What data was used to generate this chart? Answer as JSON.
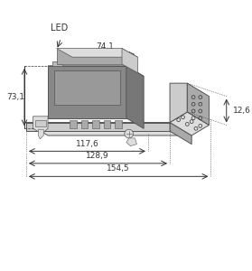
{
  "bg_color": "#ffffff",
  "line_color": "#555555",
  "dark_fill": "#888888",
  "medium_fill": "#aaaaaa",
  "light_fill": "#cccccc",
  "lighter_fill": "#dddddd",
  "dim_line_color": "#333333",
  "label_LED": "LED",
  "label_74_1": "74,1",
  "label_73_1": "73,1",
  "label_117_6": "117,6",
  "label_128_9": "128,9",
  "label_154_5": "154,5",
  "label_12_6": "12,6",
  "font_size_label": 7,
  "font_size_dim": 6.5
}
